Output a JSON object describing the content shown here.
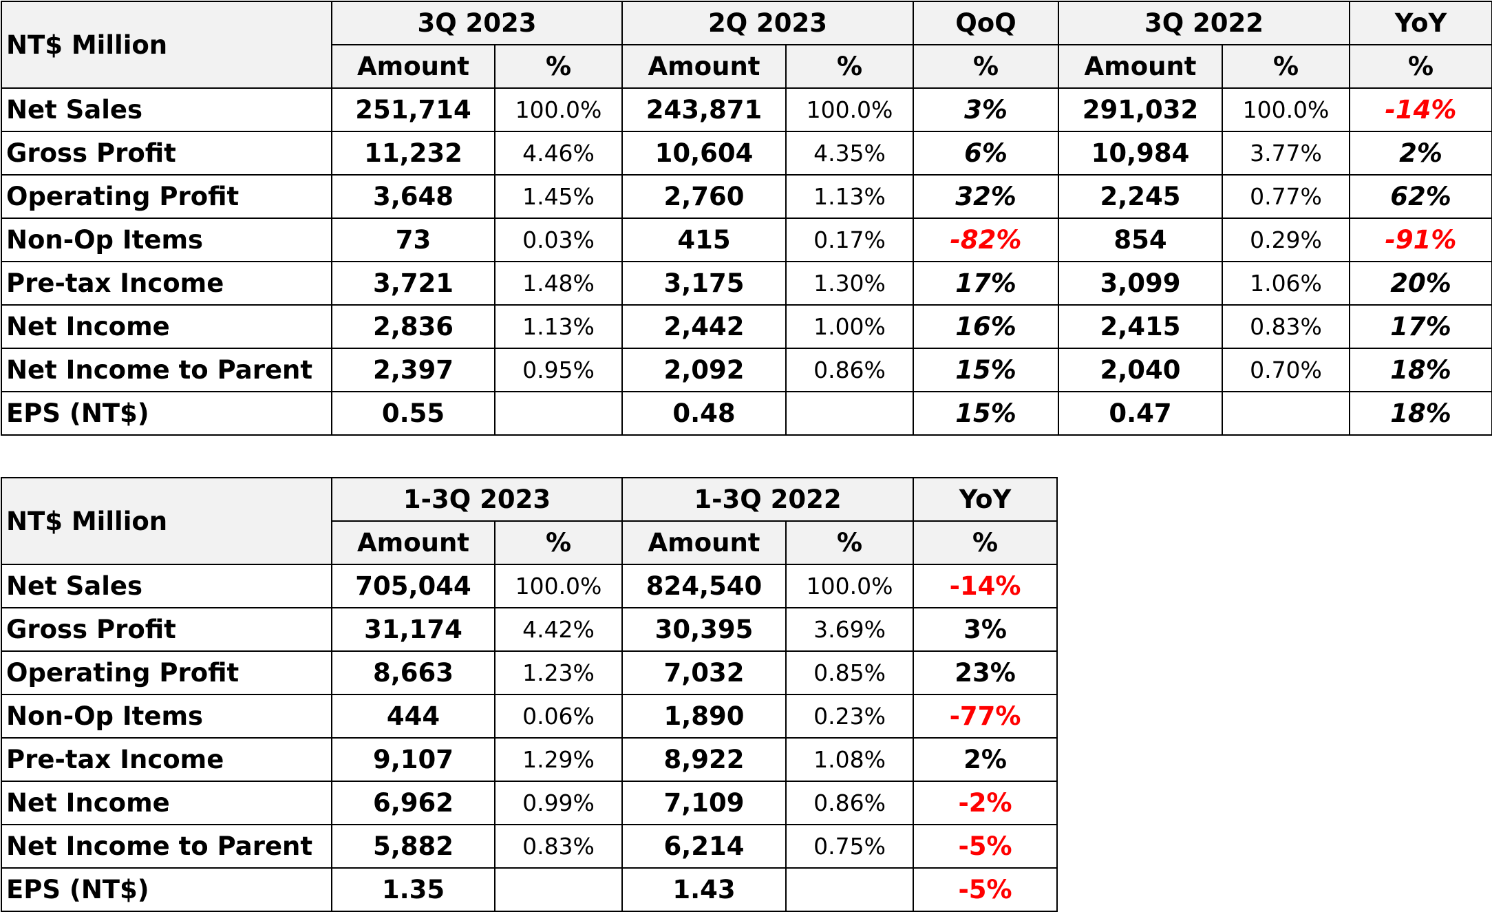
{
  "table1": {
    "corner": "NT$ Million",
    "groups": [
      {
        "label": "3Q 2023",
        "span": 2
      },
      {
        "label": "2Q 2023",
        "span": 2
      },
      {
        "label": "QoQ",
        "span": 1
      },
      {
        "label": "3Q 2022",
        "span": 2
      },
      {
        "label": "YoY",
        "span": 1
      }
    ],
    "subheaders": [
      "Amount",
      "%",
      "Amount",
      "%",
      "%",
      "Amount",
      "%",
      "%"
    ],
    "rows": [
      {
        "label": "Net Sales",
        "cells": [
          "251,714",
          "100.0%",
          "243,871",
          "100.0%",
          "3%",
          "291,032",
          "100.0%",
          "-14%"
        ]
      },
      {
        "label": "Gross Profit",
        "cells": [
          "11,232",
          "4.46%",
          "10,604",
          "4.35%",
          "6%",
          "10,984",
          "3.77%",
          "2%"
        ]
      },
      {
        "label": "Operating Profit",
        "cells": [
          "3,648",
          "1.45%",
          "2,760",
          "1.13%",
          "32%",
          "2,245",
          "0.77%",
          "62%"
        ]
      },
      {
        "label": "Non-Op Items",
        "cells": [
          "73",
          "0.03%",
          "415",
          "0.17%",
          "-82%",
          "854",
          "0.29%",
          "-91%"
        ]
      },
      {
        "label": "Pre-tax Income",
        "cells": [
          "3,721",
          "1.48%",
          "3,175",
          "1.30%",
          "17%",
          "3,099",
          "1.06%",
          "20%"
        ]
      },
      {
        "label": "Net Income",
        "cells": [
          "2,836",
          "1.13%",
          "2,442",
          "1.00%",
          "16%",
          "2,415",
          "0.83%",
          "17%"
        ]
      },
      {
        "label": "Net Income to Parent",
        "cells": [
          "2,397",
          "0.95%",
          "2,092",
          "0.86%",
          "15%",
          "2,040",
          "0.70%",
          "18%"
        ]
      },
      {
        "label": "EPS (NT$)",
        "cells": [
          "0.55",
          "",
          "0.48",
          "",
          "15%",
          "0.47",
          "",
          "18%"
        ]
      }
    ]
  },
  "table2": {
    "corner": "NT$ Million",
    "groups": [
      {
        "label": "1-3Q 2023",
        "span": 2
      },
      {
        "label": "1-3Q 2022",
        "span": 2
      },
      {
        "label": "YoY",
        "span": 1
      }
    ],
    "subheaders": [
      "Amount",
      "%",
      "Amount",
      "%",
      "%"
    ],
    "rows": [
      {
        "label": "Net Sales",
        "cells": [
          "705,044",
          "100.0%",
          "824,540",
          "100.0%",
          "-14%"
        ]
      },
      {
        "label": "Gross Profit",
        "cells": [
          "31,174",
          "4.42%",
          "30,395",
          "3.69%",
          "3%"
        ]
      },
      {
        "label": "Operating Profit",
        "cells": [
          "8,663",
          "1.23%",
          "7,032",
          "0.85%",
          "23%"
        ]
      },
      {
        "label": "Non-Op Items",
        "cells": [
          "444",
          "0.06%",
          "1,890",
          "0.23%",
          "-77%"
        ]
      },
      {
        "label": "Pre-tax Income",
        "cells": [
          "9,107",
          "1.29%",
          "8,922",
          "1.08%",
          "2%"
        ]
      },
      {
        "label": "Net Income",
        "cells": [
          "6,962",
          "0.99%",
          "7,109",
          "0.86%",
          "-2%"
        ]
      },
      {
        "label": "Net Income to Parent",
        "cells": [
          "5,882",
          "0.83%",
          "6,214",
          "0.75%",
          "-5%"
        ]
      },
      {
        "label": "EPS (NT$)",
        "cells": [
          "1.35",
          "",
          "1.43",
          "",
          "-5%"
        ]
      }
    ]
  },
  "colors": {
    "negative": "#ff0000",
    "header_bg": "#f2f2f2",
    "border": "#000000"
  }
}
